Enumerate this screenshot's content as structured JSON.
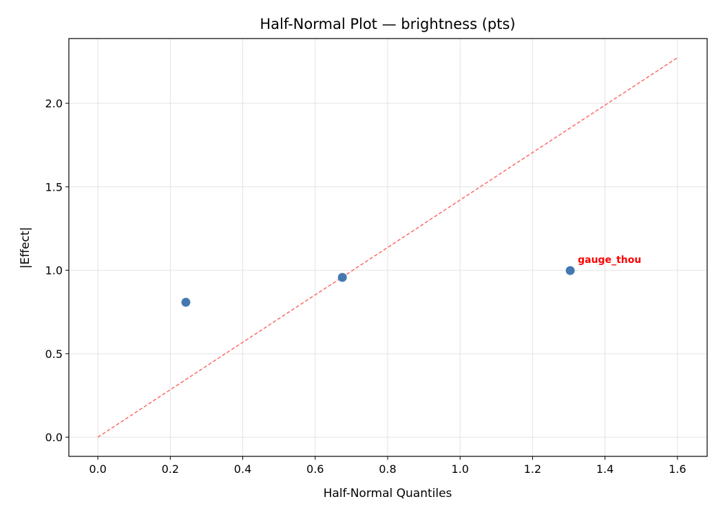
{
  "chart_data": {
    "type": "scatter",
    "title": "Half-Normal Plot — brightness (pts)",
    "xlabel": "Half-Normal Quantiles",
    "ylabel": "|Effect|",
    "xlim": [
      -0.08,
      1.682
    ],
    "ylim": [
      -0.115,
      2.388
    ],
    "xticks": [
      0.0,
      0.2,
      0.4,
      0.6,
      0.8,
      1.0,
      1.2,
      1.4,
      1.6
    ],
    "xtick_labels": [
      "0.0",
      "0.2",
      "0.4",
      "0.6",
      "0.8",
      "1.0",
      "1.2",
      "1.4",
      "1.6"
    ],
    "yticks": [
      0.0,
      0.5,
      1.0,
      1.5,
      2.0
    ],
    "ytick_labels": [
      "0.0",
      "0.5",
      "1.0",
      "1.5",
      "2.0"
    ],
    "grid": true,
    "points": [
      {
        "x": 0.243,
        "y": 0.808,
        "label": ""
      },
      {
        "x": 0.675,
        "y": 0.957,
        "label": ""
      },
      {
        "x": 1.304,
        "y": 0.998,
        "label": "gauge_thou"
      }
    ],
    "reference_line": {
      "x": [
        0.0,
        1.602
      ],
      "y": [
        0.0,
        2.276
      ],
      "style": "dashed"
    },
    "colors": {
      "points": "#4479b0",
      "reference_line": "#ff6666",
      "annotation": "#ff0000"
    }
  }
}
